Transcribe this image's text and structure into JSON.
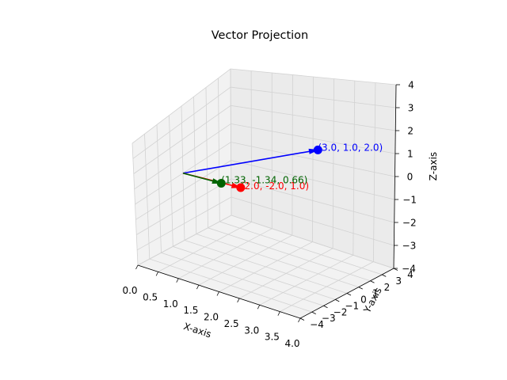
{
  "chart_data": {
    "type": "3d-vector",
    "title": "Vector Projection",
    "xlabel": "X-axis",
    "ylabel": "Y-axis",
    "zlabel": "Z-axis",
    "xlim": [
      0,
      4
    ],
    "ylim": [
      -4,
      4
    ],
    "zlim": [
      -4,
      4
    ],
    "xticks": [
      "0.0",
      "0.5",
      "1.0",
      "1.5",
      "2.0",
      "2.5",
      "3.0",
      "3.5",
      "4.0"
    ],
    "yticks": [
      "−4",
      "−3",
      "−2",
      "−1",
      "0",
      "1",
      "2",
      "3",
      "4"
    ],
    "zticks": [
      "−4",
      "−3",
      "−2",
      "−1",
      "0",
      "1",
      "2",
      "3",
      "4"
    ],
    "grid": true,
    "origin": [
      0,
      0,
      0
    ],
    "vectors": [
      {
        "color": "#0000ff",
        "end": [
          3.0,
          1.0,
          2.0
        ],
        "label": "(3.0, 1.0, 2.0)"
      },
      {
        "color": "#ff0000",
        "end": [
          2.0,
          -2.0,
          1.0
        ],
        "label": "(2.0, -2.0, 1.0)"
      },
      {
        "color": "#006400",
        "end": [
          1.33,
          -1.34,
          0.66
        ],
        "label": "(1.33, -1.34, 0.66)"
      }
    ]
  }
}
